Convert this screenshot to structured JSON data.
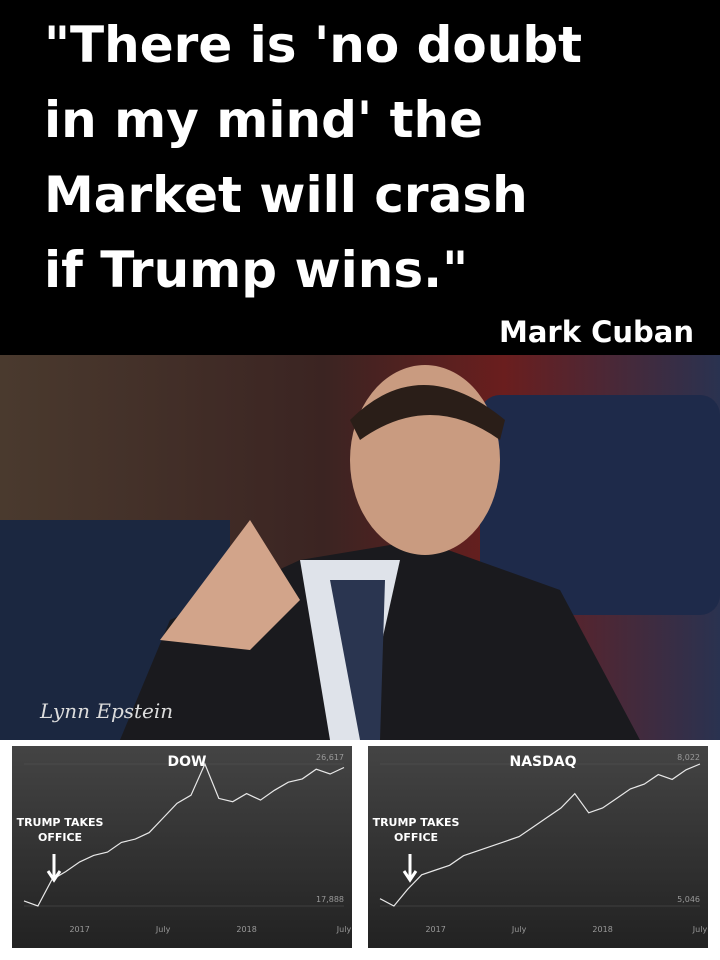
{
  "header": {
    "quote": [
      "\"There is 'no doubt",
      "in my mind' the",
      "Market will crash",
      "if Trump wins.\""
    ],
    "attribution": "Mark Cuban"
  },
  "photo": {
    "credit": "Lynn Epstein"
  },
  "chart_data": [
    {
      "type": "line",
      "title": "DOW",
      "annotations": [
        "TRUMP TAKES",
        "OFFICE"
      ],
      "categories": [
        null,
        null,
        null,
        null,
        "2017",
        null,
        null,
        null,
        null,
        null,
        "July",
        null,
        null,
        null,
        null,
        null,
        "2018",
        null,
        null,
        null,
        null,
        null,
        null,
        "July"
      ],
      "values": [
        18200,
        17888,
        19500,
        20000,
        20600,
        21000,
        21200,
        21800,
        22000,
        22400,
        23300,
        24200,
        24700,
        26617,
        24500,
        24300,
        24800,
        24400,
        25000,
        25500,
        25700,
        26300,
        26000,
        26400
      ],
      "color": "#e8e8e8",
      "ylim": [
        17888,
        26617
      ],
      "yticks": [
        {
          "value": 17888,
          "label": "17,888"
        },
        {
          "value": 26617,
          "label": "26,617"
        }
      ]
    },
    {
      "type": "line",
      "title": "NASDAQ",
      "annotations": [
        "TRUMP TAKES",
        "OFFICE"
      ],
      "categories": [
        null,
        null,
        null,
        null,
        "2017",
        null,
        null,
        null,
        null,
        null,
        "July",
        null,
        null,
        null,
        null,
        null,
        "2018",
        null,
        null,
        null,
        null,
        null,
        null,
        "July"
      ],
      "values": [
        5200,
        5046,
        5400,
        5700,
        5800,
        5900,
        6100,
        6200,
        6300,
        6400,
        6500,
        6700,
        6900,
        7100,
        7400,
        7000,
        7100,
        7300,
        7500,
        7600,
        7800,
        7700,
        7900,
        8022
      ],
      "color": "#e8e8e8",
      "ylim": [
        5046,
        8022
      ],
      "yticks": [
        {
          "value": 5046,
          "label": "5,046"
        },
        {
          "value": 8022,
          "label": "8,022"
        }
      ]
    }
  ]
}
